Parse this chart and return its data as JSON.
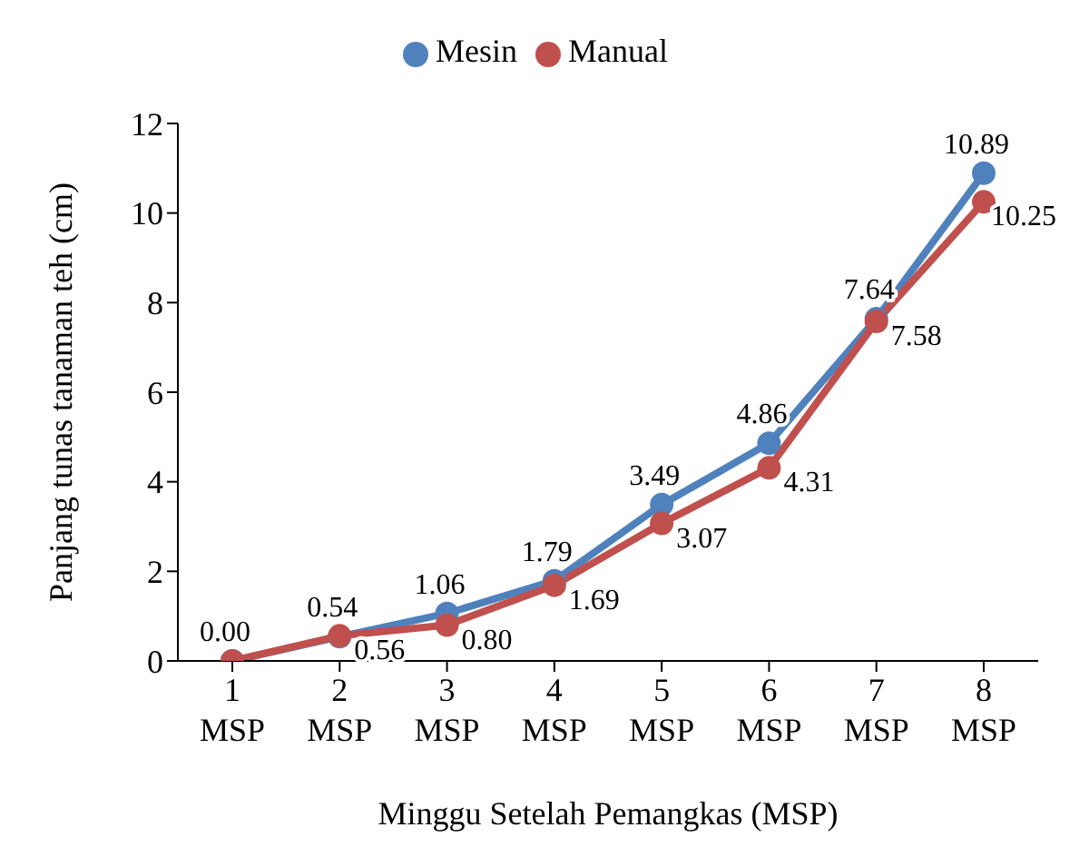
{
  "chart_data": {
    "type": "line",
    "xlabel": "Minggu Setelah Pemangkas (MSP)",
    "ylabel": "Panjang tunas tanaman teh (cm)",
    "categories": [
      "1 MSP",
      "2 MSP",
      "3 MSP",
      "4 MSP",
      "5 MSP",
      "6 MSP",
      "7 MSP",
      "8 MSP"
    ],
    "series": [
      {
        "name": "Mesin",
        "color": "#4f81bd",
        "values": [
          0.0,
          0.54,
          1.06,
          1.79,
          3.49,
          4.86,
          7.64,
          10.89
        ],
        "value_labels": [
          "0.00",
          "0.54",
          "1.06",
          "1.79",
          "3.49",
          "4.86",
          "7.64",
          "10.89"
        ]
      },
      {
        "name": "Manual",
        "color": "#c0504d",
        "values": [
          0.0,
          0.56,
          0.8,
          1.69,
          3.07,
          4.31,
          7.58,
          10.25
        ],
        "value_labels": [
          null,
          "0.56",
          "0.80",
          "1.69",
          "3.07",
          "4.31",
          "7.58",
          "10.25"
        ]
      }
    ],
    "ylim": [
      0,
      12
    ],
    "yticks": [
      0,
      2,
      4,
      6,
      8,
      10,
      12
    ],
    "grid": false,
    "legend": "top",
    "marker": "circle",
    "line_style": "solid"
  }
}
